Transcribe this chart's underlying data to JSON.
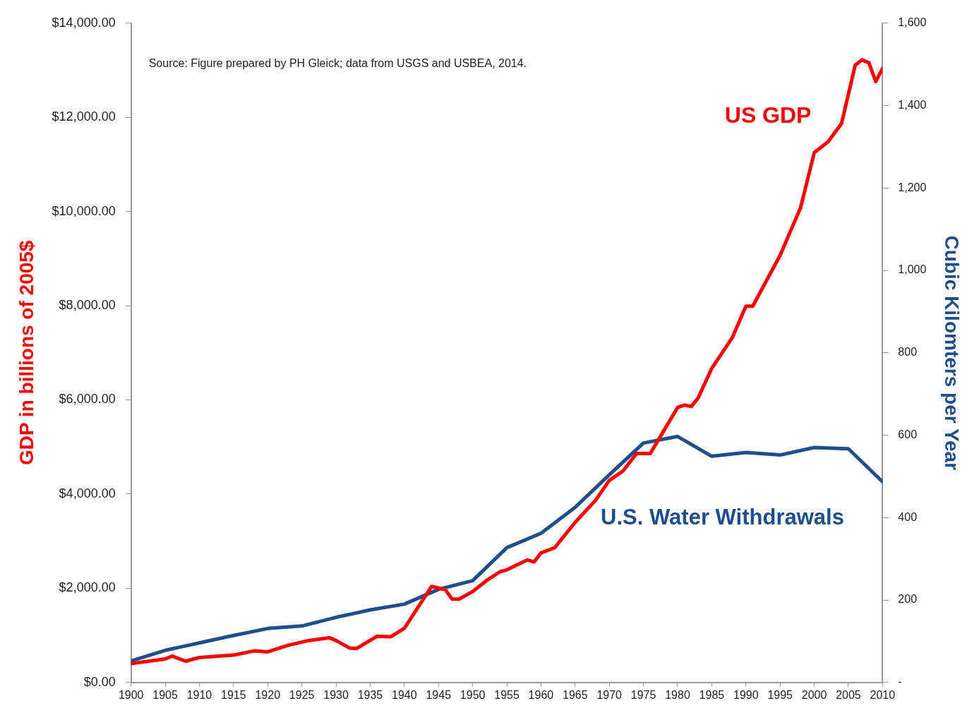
{
  "chart_data": {
    "type": "line",
    "ylabel": "GDP in billions of 2005$",
    "y2label": "Cubic Kilomters per Year",
    "annotations": [
      "Source: Figure prepared by PH Gleick; data from USGS and USBEA, 2014."
    ],
    "xlim": [
      1900,
      2010
    ],
    "xticks": [
      1900,
      1905,
      1910,
      1915,
      1920,
      1925,
      1930,
      1935,
      1940,
      1945,
      1950,
      1955,
      1960,
      1965,
      1970,
      1975,
      1980,
      1985,
      1990,
      1995,
      2000,
      2005,
      2010
    ],
    "ylim": [
      0,
      14000
    ],
    "yticks": [
      {
        "value": 0,
        "label": "$0.00"
      },
      {
        "value": 2000,
        "label": "$2,000.00"
      },
      {
        "value": 4000,
        "label": "$4,000.00"
      },
      {
        "value": 6000,
        "label": "$6,000.00"
      },
      {
        "value": 8000,
        "label": "$8,000.00"
      },
      {
        "value": 10000,
        "label": "$10,000.00"
      },
      {
        "value": 12000,
        "label": "$12,000.00"
      },
      {
        "value": 14000,
        "label": "$14,000.00"
      }
    ],
    "y2lim": [
      0,
      1600
    ],
    "y2ticks": [
      {
        "value": 0,
        "label": "-"
      },
      200,
      400,
      600,
      800,
      {
        "value": 1000,
        "label": "1,000"
      },
      {
        "value": 1200,
        "label": "1,200"
      },
      {
        "value": 1400,
        "label": "1,400"
      },
      {
        "value": 1600,
        "label": "1,600"
      }
    ],
    "grid": false,
    "legend": false,
    "marker": "none",
    "line_style": "solid",
    "series": [
      {
        "name": "US GDP",
        "color": "#ff0000",
        "x": [
          1900,
          1905,
          1906,
          1908,
          1910,
          1915,
          1918,
          1920,
          1923,
          1926,
          1929,
          1930,
          1932,
          1933,
          1936,
          1938,
          1940,
          1944,
          1946,
          1947,
          1948,
          1950,
          1952,
          1954,
          1955,
          1958,
          1959,
          1960,
          1962,
          1965,
          1968,
          1970,
          1972,
          1974,
          1976,
          1978,
          1980,
          1981,
          1982,
          1983,
          1985,
          1988,
          1990,
          1991,
          1995,
          1998,
          2000,
          2002,
          2004,
          2006,
          2007,
          2008,
          2009,
          2010
        ],
        "values": [
          400,
          500,
          560,
          450,
          530,
          580,
          670,
          650,
          790,
          890,
          950,
          890,
          730,
          720,
          980,
          970,
          1150,
          2040,
          1970,
          1770,
          1770,
          1930,
          2160,
          2350,
          2390,
          2600,
          2560,
          2750,
          2860,
          3400,
          3870,
          4290,
          4490,
          4860,
          4860,
          5350,
          5840,
          5890,
          5860,
          6040,
          6670,
          7320,
          7990,
          7990,
          9070,
          10080,
          11250,
          11480,
          11870,
          13110,
          13220,
          13160,
          12760,
          13040
        ]
      },
      {
        "name": "U.S. Water Withdrawals",
        "color": "#1f4e8c",
        "axis": "y2",
        "x": [
          1900,
          1905,
          1910,
          1915,
          1920,
          1925,
          1930,
          1935,
          1940,
          1945,
          1950,
          1955,
          1960,
          1965,
          1970,
          1975,
          1980,
          1985,
          1990,
          1995,
          2000,
          2005,
          2010
        ],
        "values": [
          52,
          78,
          96,
          114,
          131,
          137,
          158,
          176,
          190,
          226,
          247,
          327,
          362,
          425,
          504,
          581,
          597,
          549,
          558,
          552,
          570,
          567,
          487
        ]
      }
    ]
  }
}
